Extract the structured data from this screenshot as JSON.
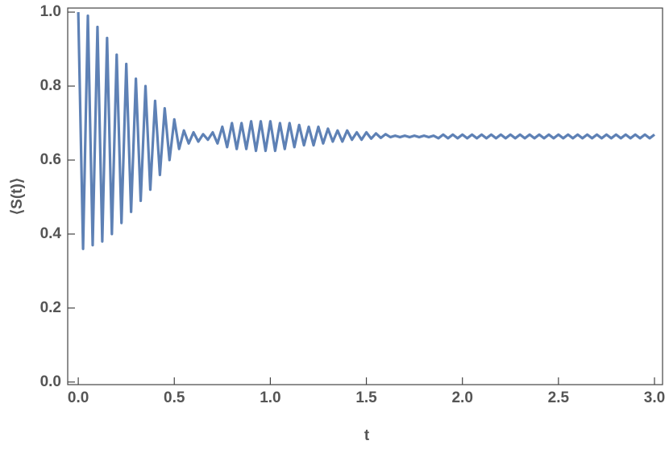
{
  "chart_data": {
    "type": "line",
    "xlabel": "t",
    "ylabel": "⟨S(t)⟩",
    "x": [
      0,
      0.025,
      0.05,
      0.075,
      0.1,
      0.125,
      0.15,
      0.175,
      0.2,
      0.225,
      0.25,
      0.275,
      0.3,
      0.325,
      0.35,
      0.375,
      0.4,
      0.425,
      0.45,
      0.475,
      0.5,
      0.525,
      0.55,
      0.575,
      0.6,
      0.625,
      0.65,
      0.675,
      0.7,
      0.725,
      0.75,
      0.775,
      0.8,
      0.825,
      0.85,
      0.875,
      0.9,
      0.925,
      0.95,
      0.975,
      1.0,
      1.025,
      1.05,
      1.075,
      1.1,
      1.125,
      1.15,
      1.175,
      1.2,
      1.225,
      1.25,
      1.275,
      1.3,
      1.325,
      1.35,
      1.375,
      1.4,
      1.425,
      1.45,
      1.475,
      1.5,
      1.525,
      1.55,
      1.575,
      1.6,
      1.625,
      1.65,
      1.675,
      1.7,
      1.725,
      1.75,
      1.775,
      1.8,
      1.825,
      1.85,
      1.875,
      1.9,
      1.925,
      1.95,
      1.975,
      2.0,
      2.025,
      2.05,
      2.075,
      2.1,
      2.125,
      2.15,
      2.175,
      2.2,
      2.225,
      2.25,
      2.275,
      2.3,
      2.325,
      2.35,
      2.375,
      2.4,
      2.425,
      2.45,
      2.475,
      2.5,
      2.525,
      2.55,
      2.575,
      2.6,
      2.625,
      2.65,
      2.675,
      2.7,
      2.725,
      2.75,
      2.775,
      2.8,
      2.825,
      2.85,
      2.875,
      2.9,
      2.925,
      2.95,
      2.975,
      3.0
    ],
    "values": [
      1.0,
      0.36,
      0.99,
      0.37,
      0.96,
      0.38,
      0.93,
      0.4,
      0.885,
      0.43,
      0.86,
      0.46,
      0.82,
      0.49,
      0.8,
      0.52,
      0.76,
      0.56,
      0.74,
      0.6,
      0.71,
      0.63,
      0.68,
      0.645,
      0.675,
      0.65,
      0.67,
      0.655,
      0.675,
      0.645,
      0.69,
      0.635,
      0.7,
      0.63,
      0.7,
      0.63,
      0.705,
      0.625,
      0.705,
      0.625,
      0.705,
      0.625,
      0.7,
      0.63,
      0.7,
      0.635,
      0.695,
      0.64,
      0.69,
      0.64,
      0.69,
      0.645,
      0.685,
      0.65,
      0.68,
      0.65,
      0.68,
      0.655,
      0.675,
      0.655,
      0.675,
      0.658,
      0.672,
      0.66,
      0.67,
      0.662,
      0.666,
      0.662,
      0.666,
      0.662,
      0.666,
      0.662,
      0.666,
      0.662,
      0.666,
      0.659,
      0.669,
      0.659,
      0.669,
      0.659,
      0.669,
      0.659,
      0.669,
      0.659,
      0.669,
      0.659,
      0.669,
      0.659,
      0.669,
      0.659,
      0.669,
      0.659,
      0.669,
      0.659,
      0.669,
      0.659,
      0.669,
      0.659,
      0.669,
      0.659,
      0.669,
      0.659,
      0.669,
      0.659,
      0.669,
      0.659,
      0.669,
      0.659,
      0.669,
      0.659,
      0.669,
      0.659,
      0.669,
      0.659,
      0.669,
      0.659,
      0.669,
      0.659,
      0.669,
      0.659,
      0.669
    ],
    "color": "#5e81b5",
    "xlim": [
      -0.055,
      3.042
    ],
    "ylim": [
      -0.007,
      1.011
    ],
    "xticks": [
      {
        "value": 0,
        "label": "0.0"
      },
      {
        "value": 0.5,
        "label": "0.5"
      },
      {
        "value": 1,
        "label": "1.0"
      },
      {
        "value": 1.5,
        "label": "1.5"
      },
      {
        "value": 2,
        "label": "2.0"
      },
      {
        "value": 2.5,
        "label": "2.5"
      },
      {
        "value": 3,
        "label": "3.0"
      }
    ],
    "yticks": [
      {
        "value": 0,
        "label": "0.0"
      },
      {
        "value": 0.2,
        "label": "0.2"
      },
      {
        "value": 0.4,
        "label": "0.4"
      },
      {
        "value": 0.6,
        "label": "0.6"
      },
      {
        "value": 0.8,
        "label": "0.8"
      },
      {
        "value": 1,
        "label": "1.0"
      }
    ]
  }
}
